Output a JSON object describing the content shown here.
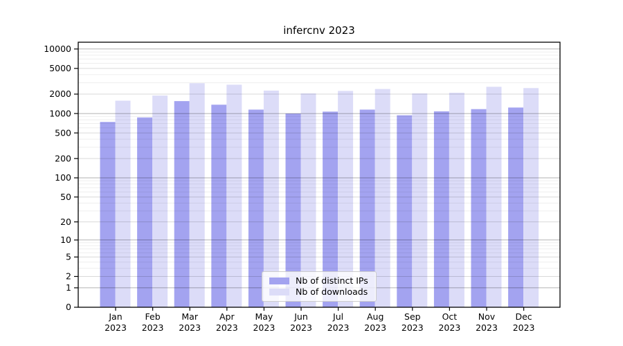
{
  "title": "infercnv 2023",
  "chart_data": {
    "type": "bar",
    "title": "infercnv 2023",
    "y_scale": "log10(1+y)",
    "grid": "horizontal, drawn over bars; decade lines darker",
    "legend_position": "lower center",
    "ylim": [
      0,
      12600
    ],
    "y_ticks": [
      0,
      1,
      2,
      5,
      10,
      20,
      50,
      100,
      200,
      500,
      1000,
      2000,
      5000,
      10000
    ],
    "minor_grid_mantissas": [
      3,
      4,
      6,
      7,
      8,
      9
    ],
    "months": [
      "Jan",
      "Feb",
      "Mar",
      "Apr",
      "May",
      "Jun",
      "Jul",
      "Aug",
      "Sep",
      "Oct",
      "Nov",
      "Dec"
    ],
    "year": "2023",
    "categories": [
      "Jan 2023",
      "Feb 2023",
      "Mar 2023",
      "Apr 2023",
      "May 2023",
      "Jun 2023",
      "Jul 2023",
      "Aug 2023",
      "Sep 2023",
      "Oct 2023",
      "Nov 2023",
      "Dec 2023"
    ],
    "series": [
      {
        "name": "Nb of distinct IPs",
        "color": "#a3a3f0",
        "values": [
          740,
          870,
          1560,
          1370,
          1150,
          1000,
          1070,
          1150,
          940,
          1080,
          1170,
          1240
        ]
      },
      {
        "name": "Nb of downloads",
        "color": "#dcdcf8",
        "values": [
          1580,
          1900,
          2950,
          2800,
          2270,
          2050,
          2240,
          2400,
          2050,
          2100,
          2600,
          2480
        ]
      }
    ]
  },
  "colors": {
    "bar_distinct_ips": "#a3a3f0",
    "bar_downloads": "#dcdcf8",
    "grid_minor": "rgba(0,0,0,0.065)",
    "grid_major": "rgba(0,0,0,0.15)",
    "grid_decade": "rgba(0,0,0,0.30)",
    "spine": "#000000",
    "text": "#000000",
    "legend_border": "#cccccc"
  }
}
